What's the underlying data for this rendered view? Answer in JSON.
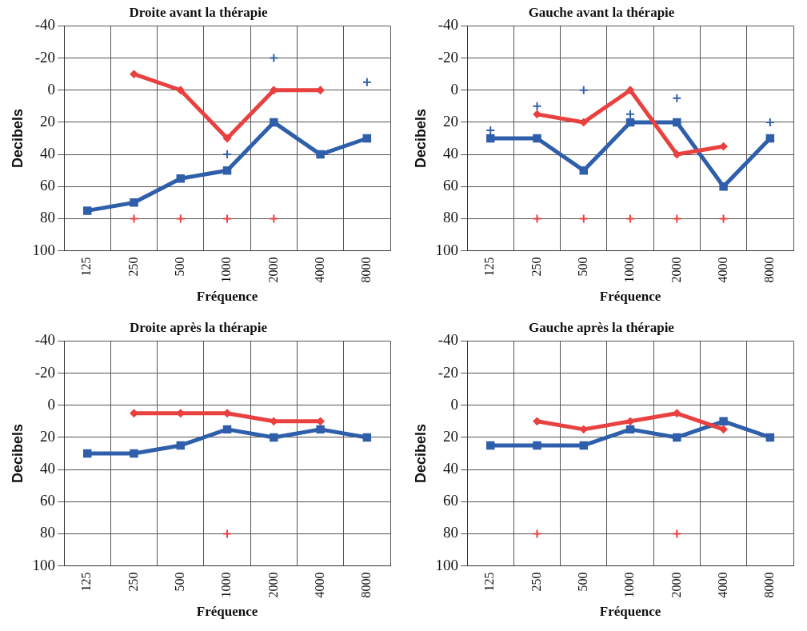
{
  "chart_data": [
    {
      "type": "line",
      "title": "Droite avant la thérapie",
      "xlabel": "Fréquence",
      "ylabel": "Decibels",
      "categories": [
        "125",
        "250",
        "500",
        "1000",
        "2000",
        "4000",
        "8000"
      ],
      "ylim": [
        100,
        -40
      ],
      "yticks": [
        -40,
        -20,
        0,
        20,
        40,
        60,
        80,
        100
      ],
      "grid": true,
      "legend": false,
      "series": [
        {
          "type": "line",
          "color": "#2f5faa",
          "marker": "square",
          "values": [
            75,
            70,
            55,
            50,
            20,
            40,
            30
          ]
        },
        {
          "type": "line",
          "color": "#e8413f",
          "marker": "diamond",
          "values": [
            null,
            -10,
            0,
            30,
            0,
            0,
            null
          ]
        },
        {
          "type": "scatter",
          "color": "#2f5faa",
          "marker": "cross",
          "values": [
            null,
            null,
            null,
            40,
            -20,
            null,
            -5
          ]
        },
        {
          "type": "scatter",
          "color": "#e8413f",
          "marker": "cross",
          "values": [
            null,
            80,
            80,
            80,
            80,
            null,
            null
          ]
        }
      ]
    },
    {
      "type": "line",
      "title": "Gauche avant la thérapie",
      "xlabel": "Fréquence",
      "ylabel": "Decibels",
      "categories": [
        "125",
        "250",
        "500",
        "1000",
        "2000",
        "4000",
        "8000"
      ],
      "ylim": [
        100,
        -40
      ],
      "yticks": [
        -40,
        -20,
        0,
        20,
        40,
        60,
        80,
        100
      ],
      "grid": true,
      "legend": false,
      "series": [
        {
          "type": "line",
          "color": "#2f5faa",
          "marker": "square",
          "values": [
            30,
            30,
            50,
            20,
            20,
            60,
            30
          ]
        },
        {
          "type": "line",
          "color": "#e8413f",
          "marker": "diamond",
          "values": [
            null,
            15,
            20,
            0,
            40,
            35,
            null
          ]
        },
        {
          "type": "scatter",
          "color": "#2f5faa",
          "marker": "cross",
          "values": [
            25,
            10,
            0,
            15,
            5,
            null,
            20
          ]
        },
        {
          "type": "scatter",
          "color": "#e8413f",
          "marker": "cross",
          "values": [
            null,
            80,
            80,
            80,
            80,
            80,
            null
          ]
        }
      ]
    },
    {
      "type": "line",
      "title": "Droite après la thérapie",
      "xlabel": "Fréquence",
      "ylabel": "Decibels",
      "categories": [
        "125",
        "250",
        "500",
        "1000",
        "2000",
        "4000",
        "8000"
      ],
      "ylim": [
        100,
        -40
      ],
      "yticks": [
        -40,
        -20,
        0,
        20,
        40,
        60,
        80,
        100
      ],
      "grid": true,
      "legend": false,
      "series": [
        {
          "type": "line",
          "color": "#2f5faa",
          "marker": "square",
          "values": [
            30,
            30,
            25,
            15,
            20,
            15,
            20
          ]
        },
        {
          "type": "line",
          "color": "#e8413f",
          "marker": "diamond",
          "values": [
            null,
            5,
            5,
            5,
            10,
            10,
            null
          ]
        },
        {
          "type": "scatter",
          "color": "#e8413f",
          "marker": "cross",
          "values": [
            null,
            null,
            null,
            80,
            null,
            null,
            null
          ]
        }
      ]
    },
    {
      "type": "line",
      "title": "Gauche après la thérapie",
      "xlabel": "Fréquence",
      "ylabel": "Decibels",
      "categories": [
        "125",
        "250",
        "500",
        "1000",
        "2000",
        "4000",
        "8000"
      ],
      "ylim": [
        100,
        -40
      ],
      "yticks": [
        -40,
        -20,
        0,
        20,
        40,
        60,
        80,
        100
      ],
      "grid": true,
      "legend": false,
      "series": [
        {
          "type": "line",
          "color": "#2f5faa",
          "marker": "square",
          "values": [
            25,
            25,
            25,
            15,
            20,
            10,
            20
          ]
        },
        {
          "type": "line",
          "color": "#e8413f",
          "marker": "diamond",
          "values": [
            null,
            10,
            15,
            10,
            5,
            15,
            null
          ]
        },
        {
          "type": "scatter",
          "color": "#e8413f",
          "marker": "cross",
          "values": [
            null,
            80,
            null,
            null,
            80,
            null,
            null
          ]
        }
      ]
    }
  ]
}
